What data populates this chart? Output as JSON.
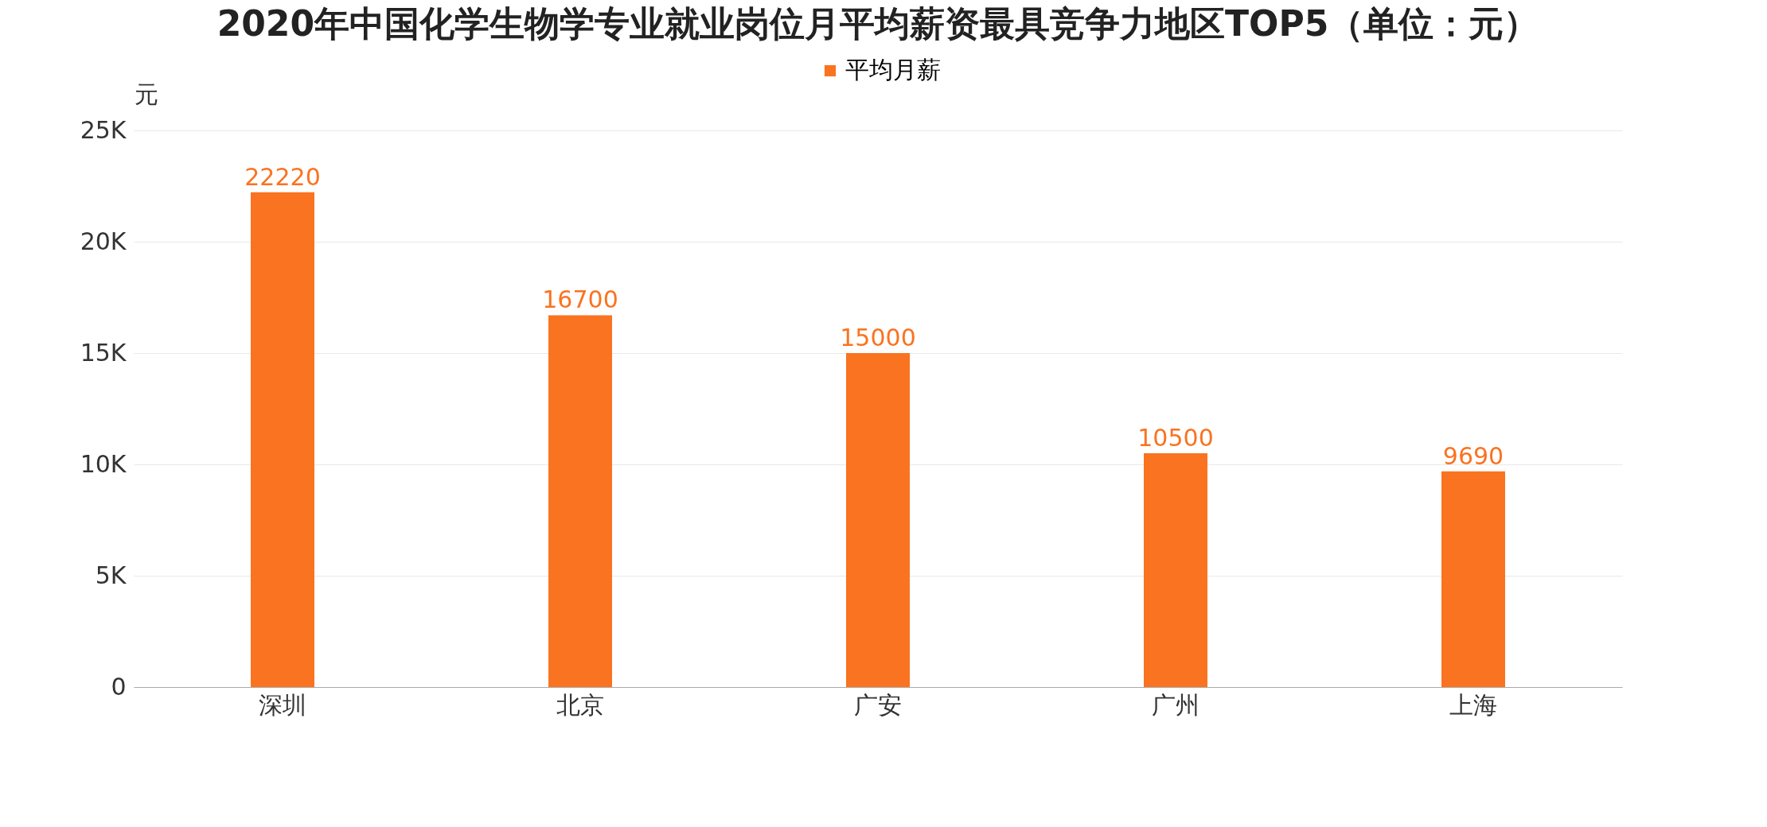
{
  "chart_data": {
    "type": "bar",
    "title": "2020年中国化学生物学专业就业岗位月平均薪资最具竞争力地区TOP5（单位：元）",
    "ylabel": "元",
    "categories": [
      "深圳",
      "北京",
      "广安",
      "广州",
      "上海"
    ],
    "series": [
      {
        "name": "平均月薪",
        "color": "#fa7320",
        "values": [
          22220,
          16700,
          15000,
          10500,
          9690
        ]
      }
    ],
    "ylim": [
      0,
      25000
    ],
    "yticks": [
      0,
      {
        "value": 5000,
        "label": "5K"
      },
      {
        "value": 10000,
        "label": "10K"
      },
      {
        "value": 15000,
        "label": "15K"
      },
      {
        "value": 20000,
        "label": "20K"
      },
      {
        "value": 25000,
        "label": "25K"
      }
    ],
    "grid": "y",
    "legend": "top",
    "data_labels": true
  }
}
